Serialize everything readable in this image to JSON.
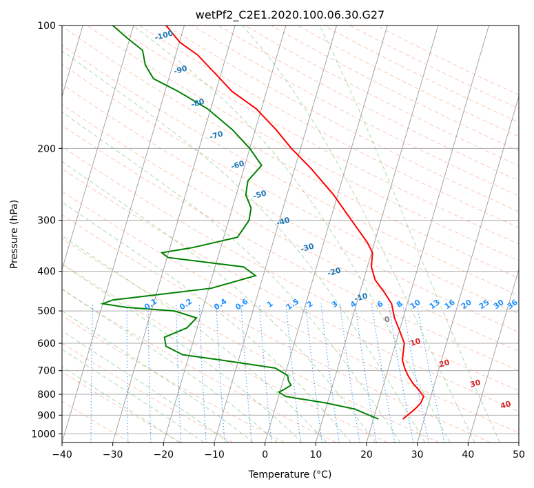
{
  "chart_data": {
    "type": "line",
    "subtype": "skew-t log-p diagram",
    "title": "wetPf2_C2E1.2020.100.06.30.G27",
    "xlabel": "Temperature (°C)",
    "ylabel": "Pressure (hPa)",
    "xlim": [
      -40,
      50
    ],
    "ylim": [
      1050,
      100
    ],
    "y_scale": "log",
    "grid": true,
    "x_ticks": [
      "−40",
      "−30",
      "−20",
      "−10",
      "0",
      "10",
      "20",
      "30",
      "40",
      "50"
    ],
    "y_ticks": [
      "100",
      "200",
      "300",
      "400",
      "500",
      "600",
      "700",
      "800",
      "900",
      "1000"
    ],
    "isotherm_labels": [
      "-100",
      "-90",
      "-80",
      "-70",
      "-60",
      "-50",
      "-40",
      "-30",
      "-20",
      "-10",
      "0",
      "10",
      "20",
      "30",
      "40"
    ],
    "mixing_ratio_labels": [
      "0.1",
      "0.2",
      "0.4",
      "0.6",
      "1",
      "1.5",
      "2",
      "3",
      "4",
      "6",
      "8",
      "10",
      "13",
      "16",
      "20",
      "25",
      "30",
      "36"
    ],
    "colors": {
      "temperature": "#ff0000",
      "dewpoint": "#008000",
      "isotherm_label_cold": "#1f77b4",
      "isotherm_label_zero": "#808080",
      "isotherm_label_warm": "#d62728",
      "mixing_ratio": "#1e90ff",
      "dry_adiabat": "#ff7f50",
      "moist_adiabat": "#2ca02c",
      "grid": "#a9a9a9"
    },
    "series": [
      {
        "name": "Temperature",
        "points": [
          {
            "p": 920,
            "t": 25.8
          },
          {
            "p": 900,
            "t": 26.5
          },
          {
            "p": 870,
            "t": 27.6
          },
          {
            "p": 840,
            "t": 28.4
          },
          {
            "p": 810,
            "t": 28.6
          },
          {
            "p": 780,
            "t": 27.2
          },
          {
            "p": 750,
            "t": 25.6
          },
          {
            "p": 720,
            "t": 24.3
          },
          {
            "p": 690,
            "t": 23.2
          },
          {
            "p": 660,
            "t": 22.3
          },
          {
            "p": 640,
            "t": 22.1
          },
          {
            "p": 600,
            "t": 21.7
          },
          {
            "p": 560,
            "t": 20.1
          },
          {
            "p": 520,
            "t": 18.3
          },
          {
            "p": 480,
            "t": 16.9
          },
          {
            "p": 450,
            "t": 14.8
          },
          {
            "p": 420,
            "t": 12.3
          },
          {
            "p": 390,
            "t": 10.8
          },
          {
            "p": 360,
            "t": 10.2
          },
          {
            "p": 340,
            "t": 8.6
          },
          {
            "p": 300,
            "t": 4.2
          },
          {
            "p": 260,
            "t": -0.8
          },
          {
            "p": 225,
            "t": -6.6
          },
          {
            "p": 200,
            "t": -11.8
          },
          {
            "p": 180,
            "t": -15.9
          },
          {
            "p": 160,
            "t": -21.0
          },
          {
            "p": 145,
            "t": -26.8
          },
          {
            "p": 130,
            "t": -31.5
          },
          {
            "p": 118,
            "t": -35.7
          },
          {
            "p": 110,
            "t": -39.9
          },
          {
            "p": 100,
            "t": -43.6
          }
        ]
      },
      {
        "name": "Dewpoint",
        "points": [
          {
            "p": 920,
            "t": 21.0
          },
          {
            "p": 900,
            "t": 18.9
          },
          {
            "p": 870,
            "t": 15.8
          },
          {
            "p": 840,
            "t": 9.7
          },
          {
            "p": 810,
            "t": 1.4
          },
          {
            "p": 790,
            "t": -0.2
          },
          {
            "p": 780,
            "t": 0.6
          },
          {
            "p": 760,
            "t": 1.8
          },
          {
            "p": 740,
            "t": 1.0
          },
          {
            "p": 720,
            "t": 0.6
          },
          {
            "p": 690,
            "t": -2.3
          },
          {
            "p": 660,
            "t": -13.3
          },
          {
            "p": 640,
            "t": -21.3
          },
          {
            "p": 610,
            "t": -25.1
          },
          {
            "p": 580,
            "t": -25.9
          },
          {
            "p": 550,
            "t": -22.0
          },
          {
            "p": 520,
            "t": -20.7
          },
          {
            "p": 500,
            "t": -25.5
          },
          {
            "p": 490,
            "t": -35.2
          },
          {
            "p": 480,
            "t": -40.0
          },
          {
            "p": 470,
            "t": -38.2
          },
          {
            "p": 440,
            "t": -19.5
          },
          {
            "p": 410,
            "t": -11.5
          },
          {
            "p": 390,
            "t": -14.4
          },
          {
            "p": 370,
            "t": -29.8
          },
          {
            "p": 360,
            "t": -31.3
          },
          {
            "p": 350,
            "t": -25.6
          },
          {
            "p": 330,
            "t": -17.3
          },
          {
            "p": 300,
            "t": -16.0
          },
          {
            "p": 280,
            "t": -16.3
          },
          {
            "p": 260,
            "t": -18.1
          },
          {
            "p": 240,
            "t": -18.5
          },
          {
            "p": 220,
            "t": -16.7
          },
          {
            "p": 200,
            "t": -20.0
          },
          {
            "p": 180,
            "t": -24.5
          },
          {
            "p": 160,
            "t": -30.6
          },
          {
            "p": 145,
            "t": -37.4
          },
          {
            "p": 135,
            "t": -43.0
          },
          {
            "p": 125,
            "t": -45.4
          },
          {
            "p": 115,
            "t": -46.8
          },
          {
            "p": 107,
            "t": -50.7
          },
          {
            "p": 100,
            "t": -54.1
          }
        ]
      }
    ]
  }
}
